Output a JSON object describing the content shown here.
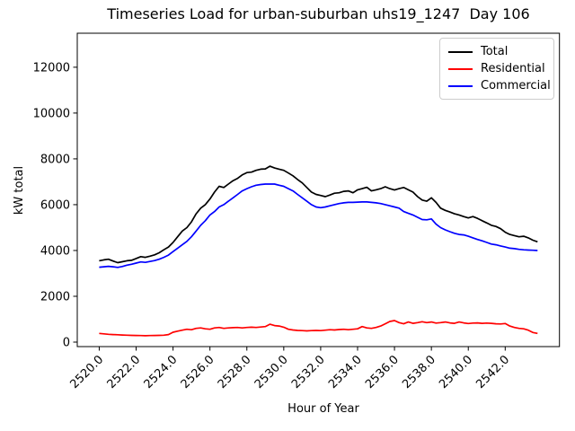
{
  "chart_data": {
    "type": "line",
    "title": "Timeseries Load for urban-suburban uhs19_1247  Day 106",
    "xlabel": "Hour of Year",
    "ylabel": "kW total",
    "xlim": [
      2518.81,
      2544.94
    ],
    "ylim": [
      -196,
      13485
    ],
    "grid": false,
    "legend_position": "upper right",
    "x_ticks": [
      2520,
      2522,
      2524,
      2526,
      2528,
      2530,
      2532,
      2534,
      2536,
      2538,
      2540,
      2542
    ],
    "x_tick_labels": [
      "2520.0",
      "2522.0",
      "2524.0",
      "2526.0",
      "2528.0",
      "2530.0",
      "2532.0",
      "2534.0",
      "2536.0",
      "2538.0",
      "2540.0",
      "2542.0"
    ],
    "y_ticks": [
      0,
      2000,
      4000,
      6000,
      8000,
      10000,
      12000
    ],
    "y_tick_labels": [
      "0",
      "2000",
      "4000",
      "6000",
      "8000",
      "10000",
      "12000"
    ],
    "x": [
      2520,
      2520.25,
      2520.5,
      2520.75,
      2521,
      2521.25,
      2521.5,
      2521.75,
      2522,
      2522.25,
      2522.5,
      2522.75,
      2523,
      2523.25,
      2523.5,
      2523.75,
      2524,
      2524.25,
      2524.5,
      2524.75,
      2525,
      2525.25,
      2525.5,
      2525.75,
      2526,
      2526.25,
      2526.5,
      2526.75,
      2527,
      2527.25,
      2527.5,
      2527.75,
      2528,
      2528.25,
      2528.5,
      2528.75,
      2529,
      2529.25,
      2529.5,
      2529.75,
      2530,
      2530.25,
      2530.5,
      2530.75,
      2531,
      2531.25,
      2531.5,
      2531.75,
      2532,
      2532.25,
      2532.5,
      2532.75,
      2533,
      2533.25,
      2533.5,
      2533.75,
      2534,
      2534.25,
      2534.5,
      2534.75,
      2535,
      2535.25,
      2535.5,
      2535.75,
      2536,
      2536.25,
      2536.5,
      2536.75,
      2537,
      2537.25,
      2537.5,
      2537.75,
      2538,
      2538.25,
      2538.5,
      2538.75,
      2539,
      2539.25,
      2539.5,
      2539.75,
      2540,
      2540.25,
      2540.5,
      2540.75,
      2541,
      2541.25,
      2541.5,
      2541.75,
      2542,
      2542.25,
      2542.5,
      2542.75,
      2543,
      2543.25,
      2543.5,
      2543.75
    ],
    "series": [
      {
        "name": "Total",
        "color": "#000000",
        "values": [
          3550,
          3590,
          3620,
          3540,
          3470,
          3510,
          3550,
          3570,
          3650,
          3730,
          3700,
          3750,
          3810,
          3900,
          4030,
          4150,
          4350,
          4600,
          4850,
          5000,
          5250,
          5600,
          5850,
          6000,
          6250,
          6550,
          6800,
          6750,
          6900,
          7050,
          7150,
          7300,
          7400,
          7420,
          7500,
          7550,
          7560,
          7680,
          7600,
          7550,
          7500,
          7380,
          7260,
          7100,
          6950,
          6750,
          6550,
          6450,
          6400,
          6350,
          6420,
          6500,
          6520,
          6580,
          6600,
          6520,
          6650,
          6700,
          6760,
          6600,
          6650,
          6700,
          6780,
          6700,
          6640,
          6700,
          6750,
          6650,
          6550,
          6350,
          6200,
          6150,
          6300,
          6100,
          5850,
          5750,
          5680,
          5600,
          5550,
          5480,
          5420,
          5480,
          5400,
          5300,
          5200,
          5100,
          5050,
          4950,
          4800,
          4700,
          4650,
          4600,
          4620,
          4550,
          4450,
          4380
        ]
      },
      {
        "name": "Residential",
        "color": "#ff0000",
        "values": [
          380,
          360,
          340,
          330,
          320,
          310,
          300,
          295,
          290,
          285,
          280,
          285,
          290,
          295,
          300,
          330,
          430,
          480,
          520,
          560,
          540,
          600,
          620,
          580,
          560,
          620,
          640,
          600,
          620,
          630,
          640,
          620,
          640,
          650,
          640,
          660,
          680,
          780,
          720,
          700,
          650,
          560,
          530,
          510,
          500,
          490,
          500,
          510,
          500,
          520,
          540,
          530,
          550,
          560,
          540,
          560,
          580,
          680,
          620,
          600,
          640,
          700,
          800,
          900,
          940,
          850,
          800,
          880,
          820,
          850,
          890,
          850,
          880,
          830,
          850,
          880,
          840,
          820,
          880,
          840,
          810,
          830,
          840,
          820,
          830,
          820,
          800,
          790,
          810,
          700,
          640,
          600,
          580,
          520,
          420,
          380
        ]
      },
      {
        "name": "Commercial",
        "color": "#0000ff",
        "values": [
          3270,
          3290,
          3310,
          3290,
          3260,
          3300,
          3360,
          3400,
          3450,
          3500,
          3480,
          3520,
          3560,
          3620,
          3700,
          3800,
          3950,
          4100,
          4250,
          4400,
          4600,
          4850,
          5100,
          5300,
          5550,
          5700,
          5900,
          6000,
          6150,
          6300,
          6450,
          6600,
          6700,
          6780,
          6850,
          6880,
          6900,
          6900,
          6900,
          6850,
          6800,
          6700,
          6600,
          6450,
          6300,
          6150,
          6000,
          5900,
          5870,
          5900,
          5950,
          6000,
          6050,
          6080,
          6100,
          6100,
          6110,
          6120,
          6120,
          6100,
          6080,
          6050,
          6000,
          5950,
          5900,
          5850,
          5700,
          5620,
          5550,
          5450,
          5350,
          5340,
          5380,
          5150,
          5000,
          4900,
          4820,
          4750,
          4700,
          4680,
          4620,
          4550,
          4480,
          4420,
          4350,
          4280,
          4250,
          4200,
          4150,
          4100,
          4080,
          4050,
          4030,
          4020,
          4010,
          4000
        ]
      }
    ]
  }
}
